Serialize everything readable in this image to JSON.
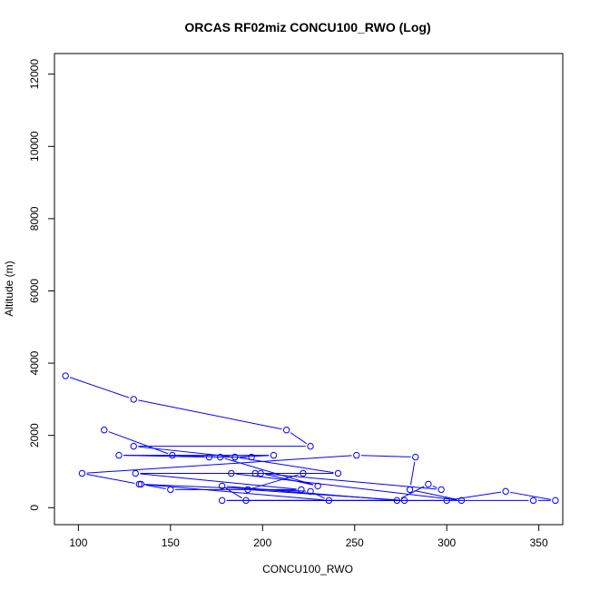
{
  "chart_data": {
    "type": "line",
    "title": "ORCAS RF02miz CONCU100_RWO (Log)",
    "xlabel": "CONCU100_RWO",
    "ylabel": "Altitude (m)",
    "xlim": [
      87,
      363
    ],
    "ylim": [
      -470,
      12570
    ],
    "x_ticks": [
      100,
      150,
      200,
      250,
      300,
      350
    ],
    "y_ticks": [
      0,
      2000,
      4000,
      6000,
      8000,
      10000,
      12000
    ],
    "grid": false,
    "series_color": "#0000ff",
    "series": [
      {
        "x": [
          93,
          130,
          213,
          226,
          130,
          185,
          206,
          122,
          171,
          194,
          185,
          241,
          131,
          221,
          150,
          134,
          236,
          226,
          133,
          102,
          251,
          283,
          280,
          308,
          183,
          196,
          222,
          192,
          277,
          178,
          300,
          332,
          359,
          347,
          191,
          178,
          273,
          290,
          297,
          199,
          230,
          177,
          151,
          114
        ],
        "y": [
          3650,
          3000,
          2150,
          1700,
          1700,
          1400,
          1450,
          1450,
          1400,
          1400,
          1400,
          950,
          950,
          500,
          500,
          650,
          200,
          450,
          650,
          950,
          1450,
          1400,
          500,
          200,
          950,
          950,
          950,
          500,
          200,
          200,
          200,
          450,
          200,
          200,
          200,
          600,
          200,
          650,
          500,
          950,
          600,
          1400,
          1450,
          2150
        ]
      }
    ]
  }
}
